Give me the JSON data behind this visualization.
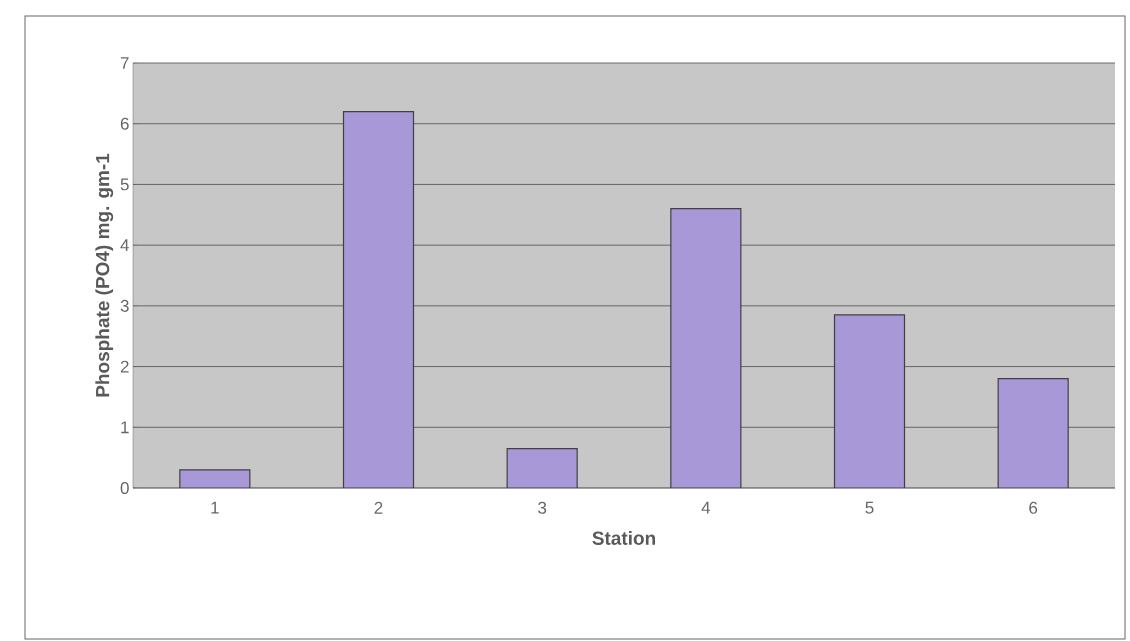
{
  "chart_data": {
    "type": "bar",
    "xlabel": "Station",
    "ylabel": "Phosphate (PO4) mg. gm-1",
    "categories": [
      "1",
      "2",
      "3",
      "4",
      "5",
      "6"
    ],
    "values": [
      0.3,
      6.2,
      0.65,
      4.6,
      2.85,
      1.8
    ],
    "color": "#a898d8",
    "ylim": [
      0,
      7
    ],
    "yticks": [
      0,
      1,
      2,
      3,
      4,
      5,
      6,
      7
    ],
    "grid": "y"
  }
}
